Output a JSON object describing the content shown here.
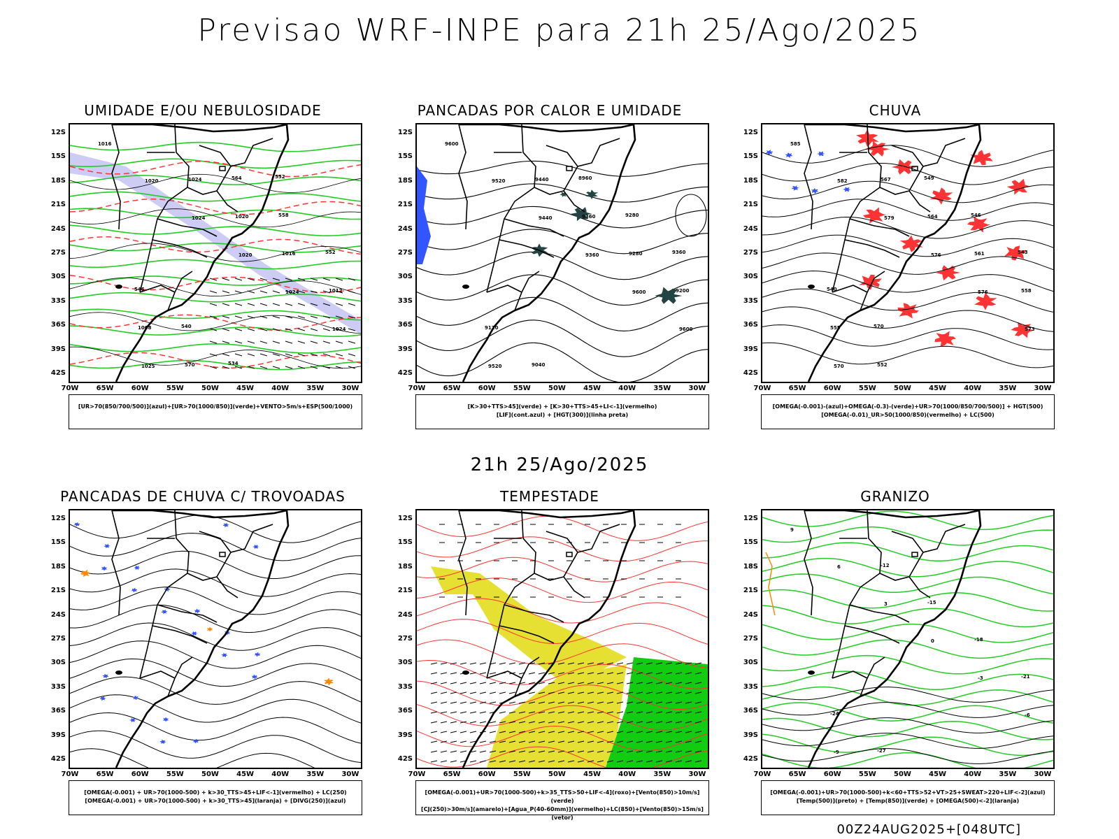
{
  "main_title": "Previsao WRF-INPE  para 21h 25/Ago/2025",
  "mid_title": "21h 25/Ago/2025",
  "footer": "00Z24AUG2025+[048UTC]",
  "lat_labels": [
    "12S",
    "15S",
    "18S",
    "21S",
    "24S",
    "27S",
    "30S",
    "33S",
    "36S",
    "39S",
    "42S"
  ],
  "lon_labels": [
    "70W",
    "65W",
    "60W",
    "55W",
    "50W",
    "45W",
    "40W",
    "35W",
    "30W"
  ],
  "colors": {
    "blue": "#3355ff",
    "green": "#22cc22",
    "red": "#ff3333",
    "orange": "#ff8800",
    "yellow": "#e6e033",
    "lavender": "#aaaaee",
    "dark_teal": "#224444"
  },
  "panels": [
    {
      "title": "UMIDADE E/OU NEBULOSIDADE",
      "legend_lines": [
        "[UR>70(850/700/500)](azul)+[UR>70(1000/850)](verde)+VENTO>5m/s+ESP(500/1000)"
      ],
      "contour_labels": [
        "1016",
        "1020",
        "1024",
        "1020",
        "1024",
        "1024",
        "1025",
        "1024",
        "1020",
        "1016",
        "1012",
        "1008",
        "570",
        "564",
        "558",
        "552",
        "546",
        "540",
        "534",
        "552"
      ]
    },
    {
      "title": "PANCADAS POR CALOR E UMIDADE",
      "legend_lines": [
        "[K>30+TTS>45](verde) + [K>30+TTS>45+LI<-1](vermelho)",
        "[LIF](cont.azul) + [HGT(300)](linha preta)"
      ],
      "contour_labels": [
        "9600",
        "9520",
        "9440",
        "9360",
        "9600",
        "9600",
        "9520",
        "9440",
        "9360",
        "9280",
        "9200",
        "9120",
        "9040",
        "8960",
        "9280",
        "9360"
      ]
    },
    {
      "title": "CHUVA",
      "legend_lines": [
        "[OMEGA(-0.001)-(azul)+OMEGA(-0.3)-(verde)+UR>70(1000/850/700/500)] + HGT(500)",
        "[OMEGA(-0.01)_UR>50(1000/850)(vermelho) + LC(500)"
      ],
      "contour_labels": [
        "585",
        "582",
        "579",
        "576",
        "576",
        "573",
        "570",
        "567",
        "564",
        "561",
        "558",
        "555",
        "552",
        "549",
        "546",
        "543",
        "540",
        "570"
      ]
    },
    {
      "title": "PANCADAS DE CHUVA C/ TROVOADAS",
      "legend_lines": [
        "[OMEGA(-0.001) + UR>70(1000-500) + k>30_TTS>45+LIF<-1](vermelho) + LC(250)",
        "[OMEGA(-0.001) + UR>70(1000-500) + k>30_TTS>45](laranja) + [DIVG(250)](azul)"
      ],
      "contour_labels": []
    },
    {
      "title": "TEMPESTADE",
      "legend_lines": [
        "[OMEGA(-0.001)+UR>70(1000-500)+k>35_TTS>50+LIF<-4](roxo)+[Vento(850)>10m/s](verde)",
        "[CJ(250)>30m/s](amarelo)+[Agua_P(40-60mm)](vermelho)+LC(850)+[Vento(850)>15m/s](vetor)"
      ],
      "contour_labels": []
    },
    {
      "title": "GRANIZO",
      "legend_lines": [
        "[OMEGA(-0.001)+UR>70(1000-500)+k<60+TTS>52+VT>25+SWEAT>220+LIF<-2](azul)",
        "[Temp(500)](preto) + [Temp(850)](verde) + [OMEGA(500)<-2](laranja)"
      ],
      "contour_labels": [
        "9",
        "6",
        "3",
        "0",
        "-3",
        "-6",
        "-9",
        "-12",
        "-15",
        "-18",
        "-21",
        "-24",
        "-27"
      ]
    }
  ]
}
